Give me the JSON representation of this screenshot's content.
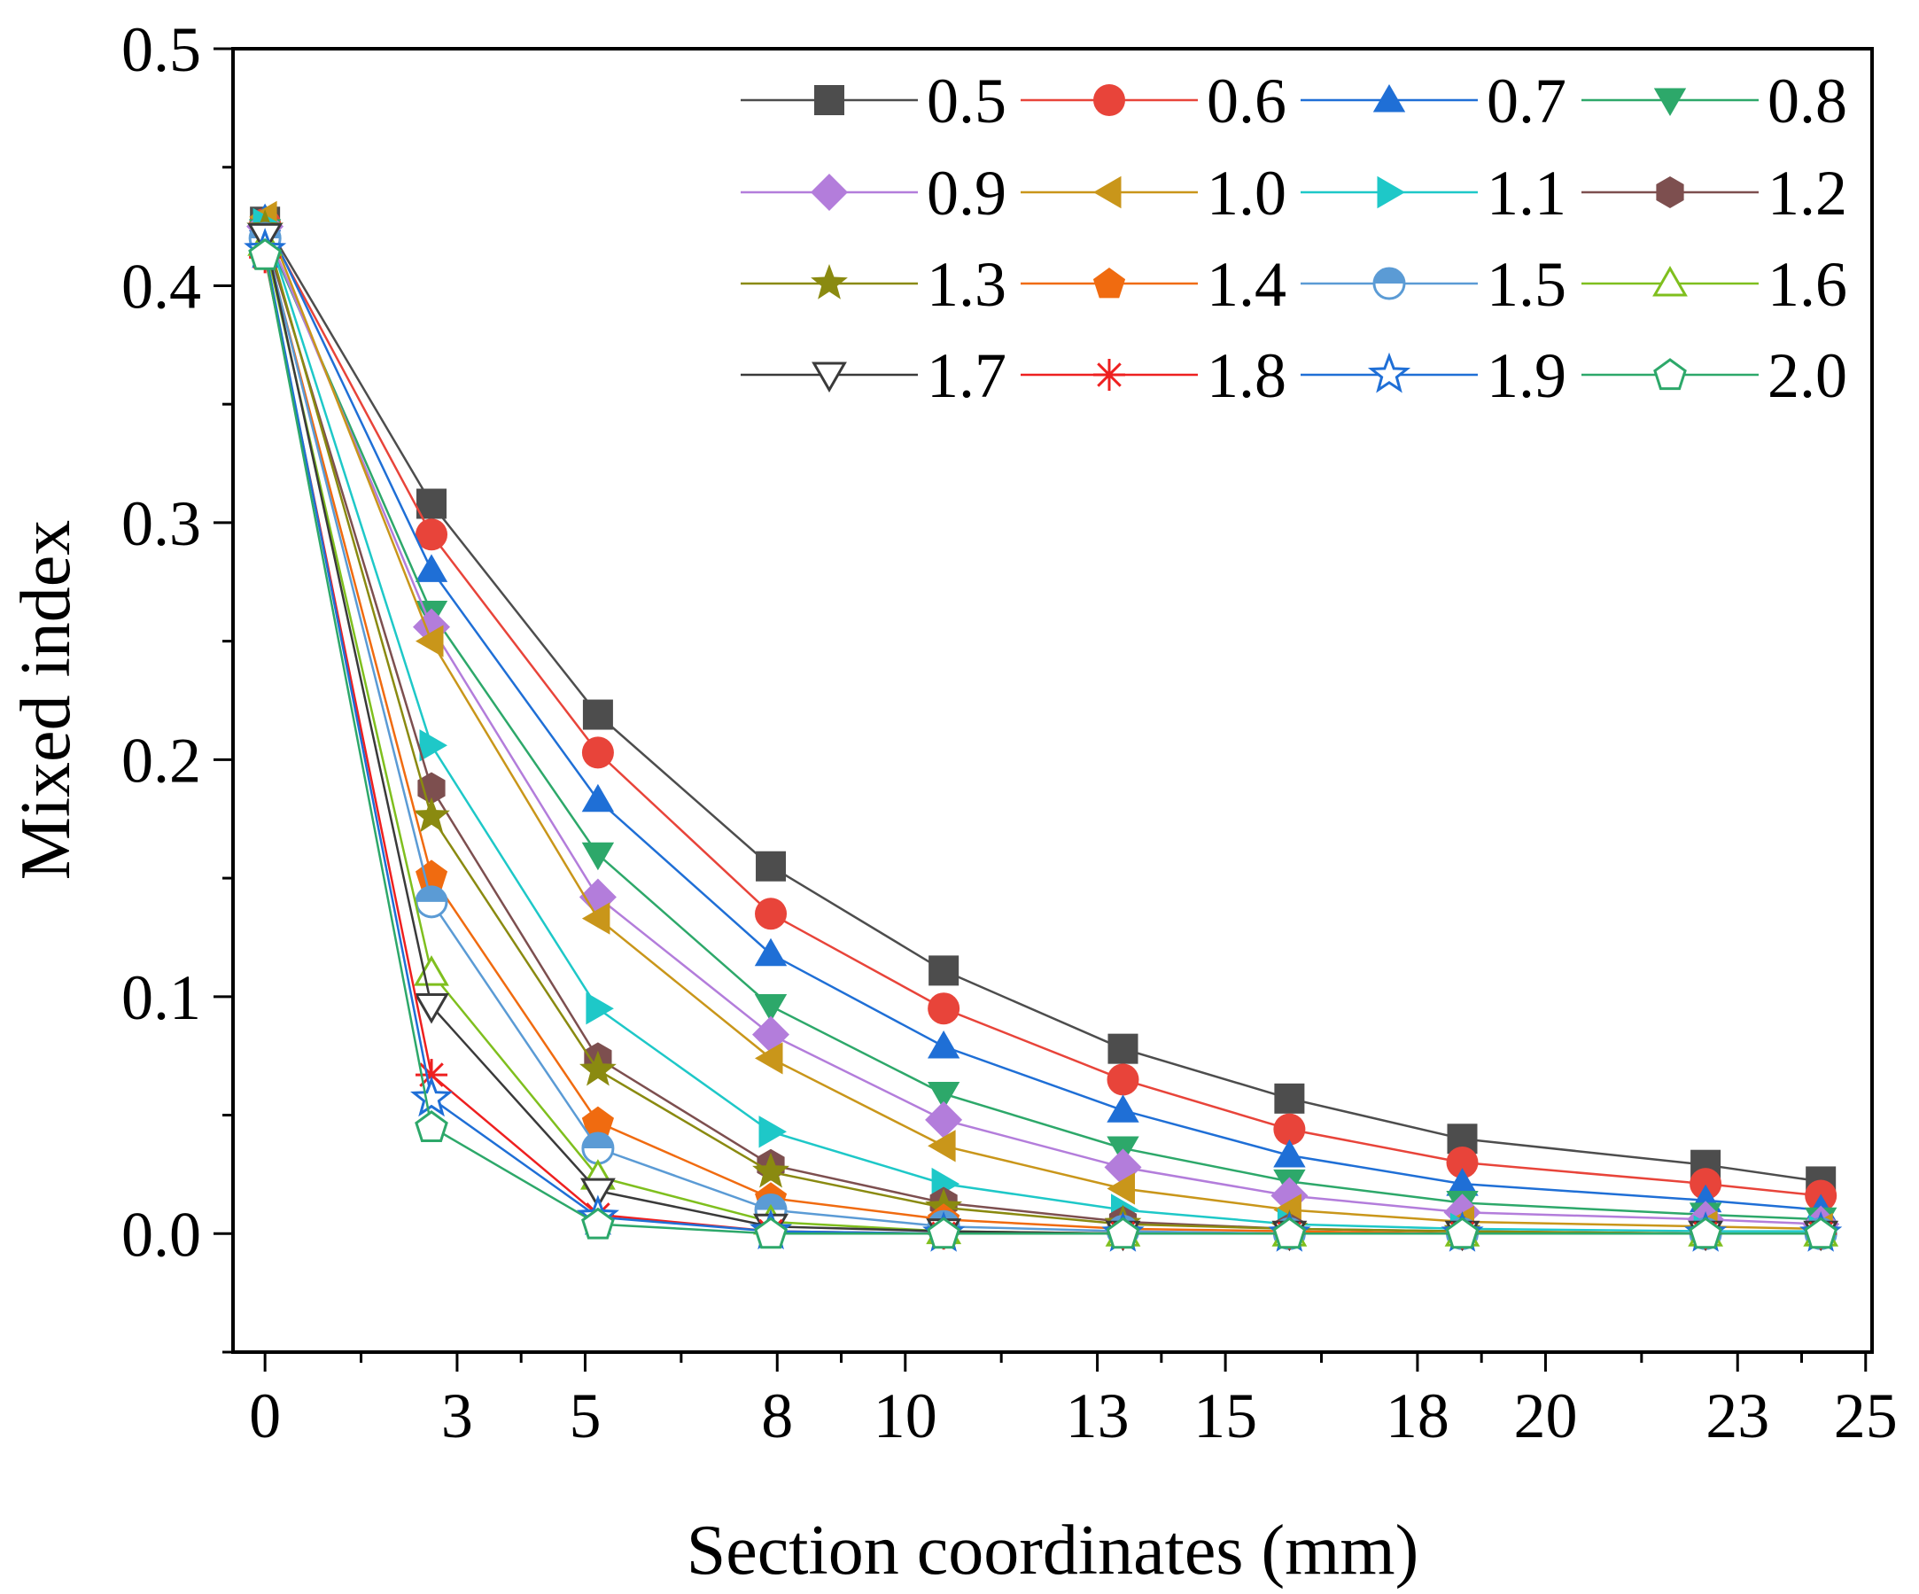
{
  "chart_data": {
    "type": "line",
    "xlabel": "Section coordinates (mm)",
    "ylabel": "Mixed index",
    "xlim": [
      -0.5,
      25.1
    ],
    "ylim": [
      -0.05,
      0.5
    ],
    "x_ticks": [
      0,
      3,
      5,
      8,
      10,
      13,
      15,
      18,
      20,
      23,
      25
    ],
    "x_tick_labels": [
      "0",
      "3",
      "5",
      "8",
      "10",
      "13",
      "15",
      "18",
      "20",
      "23",
      "25"
    ],
    "y_ticks": [
      0.0,
      0.1,
      0.2,
      0.3,
      0.4,
      0.5
    ],
    "y_tick_labels": [
      "0.0",
      "0.1",
      "0.2",
      "0.3",
      "0.4",
      "0.5"
    ],
    "x": [
      0,
      2.6,
      5.2,
      7.9,
      10.6,
      13.4,
      16.0,
      18.7,
      22.5,
      24.3
    ],
    "legend_position": "top-right",
    "series": [
      {
        "name": "0.5",
        "color": "#4d4d4d",
        "marker": "square",
        "values": [
          0.427,
          0.308,
          0.219,
          0.155,
          0.111,
          0.078,
          0.057,
          0.04,
          0.029,
          0.022
        ]
      },
      {
        "name": "0.6",
        "color": "#e8443a",
        "marker": "circle",
        "values": [
          0.426,
          0.295,
          0.203,
          0.135,
          0.095,
          0.065,
          0.044,
          0.03,
          0.021,
          0.016
        ]
      },
      {
        "name": "0.7",
        "color": "#1f6fd6",
        "marker": "triangle-up",
        "values": [
          0.428,
          0.28,
          0.183,
          0.118,
          0.079,
          0.052,
          0.033,
          0.021,
          0.014,
          0.01
        ]
      },
      {
        "name": "0.8",
        "color": "#2da86a",
        "marker": "triangle-down",
        "values": [
          0.423,
          0.262,
          0.16,
          0.096,
          0.059,
          0.036,
          0.022,
          0.013,
          0.008,
          0.006
        ]
      },
      {
        "name": "0.9",
        "color": "#b37ddb",
        "marker": "diamond",
        "values": [
          0.425,
          0.256,
          0.142,
          0.084,
          0.048,
          0.028,
          0.016,
          0.009,
          0.006,
          0.004
        ]
      },
      {
        "name": "1.0",
        "color": "#c9961a",
        "marker": "triangle-left",
        "values": [
          0.429,
          0.25,
          0.133,
          0.074,
          0.037,
          0.019,
          0.01,
          0.005,
          0.003,
          0.002
        ]
      },
      {
        "name": "1.1",
        "color": "#1ec8c8",
        "marker": "triangle-right",
        "values": [
          0.426,
          0.206,
          0.095,
          0.043,
          0.021,
          0.01,
          0.004,
          0.002,
          0.001,
          0.001
        ]
      },
      {
        "name": "1.2",
        "color": "#7d4f4f",
        "marker": "hexagon",
        "values": [
          0.421,
          0.188,
          0.074,
          0.029,
          0.013,
          0.005,
          0.002,
          0.001,
          0.0,
          0.0
        ]
      },
      {
        "name": "1.3",
        "color": "#8a8a10",
        "marker": "star",
        "values": [
          0.424,
          0.176,
          0.069,
          0.026,
          0.011,
          0.004,
          0.002,
          0.001,
          0.0,
          0.0
        ]
      },
      {
        "name": "1.4",
        "color": "#f06b10",
        "marker": "pentagon",
        "values": [
          0.419,
          0.151,
          0.047,
          0.015,
          0.006,
          0.002,
          0.001,
          0.0,
          0.0,
          0.0
        ]
      },
      {
        "name": "1.5",
        "color": "#5b9bd5",
        "marker": "half-circle",
        "values": [
          0.42,
          0.14,
          0.036,
          0.01,
          0.003,
          0.001,
          0.0,
          0.0,
          0.0,
          0.0
        ]
      },
      {
        "name": "1.6",
        "color": "#7fbf1e",
        "marker": "triangle-up-open",
        "values": [
          0.418,
          0.11,
          0.024,
          0.005,
          0.001,
          0.0,
          0.0,
          0.0,
          0.0,
          0.0
        ]
      },
      {
        "name": "1.7",
        "color": "#3a3a3a",
        "marker": "triangle-down-open",
        "values": [
          0.421,
          0.096,
          0.018,
          0.003,
          0.001,
          0.0,
          0.0,
          0.0,
          0.0,
          0.0
        ]
      },
      {
        "name": "1.8",
        "color": "#ee2020",
        "marker": "asterisk",
        "values": [
          0.412,
          0.067,
          0.008,
          0.001,
          0.0,
          0.0,
          0.0,
          0.0,
          0.0,
          0.0
        ]
      },
      {
        "name": "1.9",
        "color": "#1f6fd6",
        "marker": "star-open",
        "values": [
          0.415,
          0.057,
          0.007,
          0.001,
          0.0,
          0.0,
          0.0,
          0.0,
          0.0,
          0.0
        ]
      },
      {
        "name": "2.0",
        "color": "#2da86a",
        "marker": "pentagon-open",
        "values": [
          0.413,
          0.045,
          0.004,
          0.0,
          0.0,
          0.0,
          0.0,
          0.0,
          0.0,
          0.0
        ]
      }
    ]
  }
}
